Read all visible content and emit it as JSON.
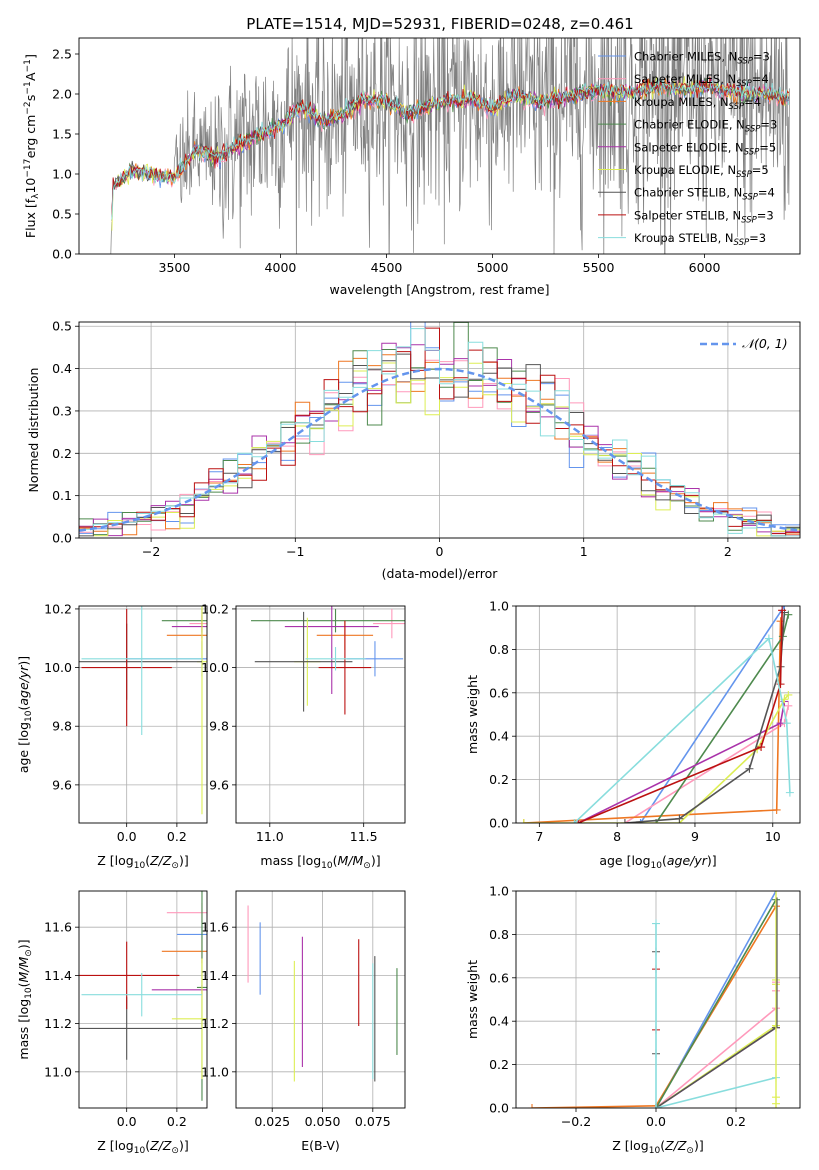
{
  "figure_title": "PLATE=1514, MJD=52931, FIBERID=0248, z=0.461",
  "palette": {
    "chabrier_miles": "#6495ed",
    "salpeter_miles": "#ff99bb",
    "kroupa_miles": "#ee7722",
    "chabrier_elodie": "#4e8a4e",
    "salpeter_elodie": "#aa33aa",
    "kroupa_elodie": "#ddee55",
    "chabrier_stelib": "#555555",
    "salpeter_stelib": "#bb1111",
    "kroupa_stelib": "#88dddd",
    "spectrum": "#808080",
    "grid": "#b0b0b0"
  },
  "chart_data": [
    {
      "id": "spectrum",
      "type": "line",
      "title": "PLATE=1514, MJD=52931, FIBERID=0248, z=0.461",
      "xlabel": "wavelength [Angstrom, rest frame]",
      "ylabel": "Flux [f",
      "ylabel_sub": "λ",
      "ylabel_rest": "10",
      "ylabel_exp": "−17",
      "ylabel_tail": " erg cm",
      "xlim": [
        3050,
        6450
      ],
      "ylim": [
        0,
        2.7
      ],
      "xticks": [
        "3500",
        "4000",
        "4500",
        "5000",
        "5500",
        "6000"
      ],
      "xtick_values": [
        3500,
        4000,
        4500,
        5000,
        5500,
        6000
      ],
      "yticks": [
        "0.0",
        "0.5",
        "1.0",
        "1.5",
        "2.0",
        "2.5"
      ],
      "ytick_values": [
        0,
        0.5,
        1.0,
        1.5,
        2.0,
        2.5
      ],
      "grid": false,
      "legend_position": "top-right",
      "legend": [
        {
          "label": "Chabrier MILES, N",
          "sub": "SSP",
          "tail": "=3",
          "color": "#6495ed"
        },
        {
          "label": "Salpeter MILES, N",
          "sub": "SSP",
          "tail": "=4",
          "color": "#ff99bb"
        },
        {
          "label": "Kroupa MILES, N",
          "sub": "SSP",
          "tail": "=4",
          "color": "#ee7722"
        },
        {
          "label": "Chabrier ELODIE, N",
          "sub": "SSP",
          "tail": "=3",
          "color": "#4e8a4e"
        },
        {
          "label": "Salpeter ELODIE, N",
          "sub": "SSP",
          "tail": "=5",
          "color": "#aa33aa"
        },
        {
          "label": "Kroupa ELODIE, N",
          "sub": "SSP",
          "tail": "=5",
          "color": "#ddee55"
        },
        {
          "label": "Chabrier STELIB, N",
          "sub": "SSP",
          "tail": "=4",
          "color": "#555555"
        },
        {
          "label": "Salpeter STELIB, N",
          "sub": "SSP",
          "tail": "=3",
          "color": "#bb1111"
        },
        {
          "label": "Kroupa STELIB, N",
          "sub": "SSP",
          "tail": "=3",
          "color": "#88dddd"
        }
      ],
      "spectrum_start": 3200,
      "spectrum_end": 6400,
      "continuum_points": [
        [
          3200,
          0.0
        ],
        [
          3210,
          0.85
        ],
        [
          3300,
          1.05
        ],
        [
          3400,
          1.0
        ],
        [
          3500,
          0.95
        ],
        [
          3600,
          1.3
        ],
        [
          3700,
          1.2
        ],
        [
          3800,
          1.35
        ],
        [
          3900,
          1.5
        ],
        [
          4000,
          1.6
        ],
        [
          4100,
          1.85
        ],
        [
          4200,
          1.65
        ],
        [
          4300,
          1.75
        ],
        [
          4400,
          1.95
        ],
        [
          4500,
          1.9
        ],
        [
          4600,
          1.75
        ],
        [
          4700,
          1.85
        ],
        [
          4800,
          1.9
        ],
        [
          4900,
          1.95
        ],
        [
          5000,
          1.8
        ],
        [
          5100,
          2.0
        ],
        [
          5200,
          1.9
        ],
        [
          5300,
          1.95
        ],
        [
          5400,
          2.0
        ],
        [
          5500,
          2.05
        ],
        [
          5600,
          2.0
        ],
        [
          5700,
          2.05
        ],
        [
          5800,
          2.1
        ],
        [
          5900,
          2.05
        ],
        [
          6000,
          2.1
        ],
        [
          6100,
          2.05
        ],
        [
          6200,
          2.0
        ],
        [
          6300,
          2.0
        ],
        [
          6400,
          1.95
        ]
      ]
    },
    {
      "id": "residuals",
      "type": "bar",
      "xlabel": "(data-model)/error",
      "ylabel": "Normed distribution",
      "xlim": [
        -2.5,
        2.5
      ],
      "ylim": [
        0,
        0.51
      ],
      "xticks": [
        "−2",
        "−1",
        "0",
        "1",
        "2"
      ],
      "xtick_values": [
        -2,
        -1,
        0,
        1,
        2
      ],
      "yticks": [
        "0.0",
        "0.1",
        "0.2",
        "0.3",
        "0.4",
        "0.5"
      ],
      "ytick_values": [
        0,
        0.1,
        0.2,
        0.3,
        0.4,
        0.5
      ],
      "grid": true,
      "legend_position": "top-right",
      "legend_label": "𝒩(0, 1)",
      "bin_width": 0.1,
      "reference": "standard normal density (dashed)"
    },
    {
      "id": "age_vs_Z",
      "type": "scatter",
      "xlabel": "Z [log",
      "xlabel_sub": "10",
      "xlabel_tail": "(Z/Z",
      "xlabel_end": ")]",
      "ylabel": "age  [log",
      "ylabel_sub": "10",
      "ylabel_tail": "(age/yr)]",
      "xlim": [
        -0.19,
        0.32
      ],
      "ylim": [
        9.47,
        10.21
      ],
      "xticks": [
        "0.0",
        "0.2"
      ],
      "xtick_values": [
        0.0,
        0.2
      ],
      "yticks": [
        "9.6",
        "9.8",
        "10.0",
        "10.2"
      ],
      "ytick_values": [
        9.6,
        9.8,
        10.0,
        10.2
      ],
      "grid": true,
      "points": [
        {
          "model": "chabrier_miles",
          "x": 0.3,
          "xerr": 0.3,
          "y": 10.03,
          "yerr": 0.06
        },
        {
          "model": "salpeter_miles",
          "x": 0.3,
          "xerr": 0.05,
          "y": 10.15,
          "yerr": 0.05
        },
        {
          "model": "kroupa_miles",
          "x": 0.3,
          "xerr": 0.14,
          "y": 10.11,
          "yerr": 0.05
        },
        {
          "model": "chabrier_elodie",
          "x": 0.3,
          "xerr": 0.16,
          "y": 10.16,
          "yerr": 0.04
        },
        {
          "model": "salpeter_elodie",
          "x": 0.3,
          "xerr": 0.12,
          "y": 10.14,
          "yerr": 0.04
        },
        {
          "model": "kroupa_elodie",
          "x": 0.3,
          "xerr": 0.02,
          "y": 10.02,
          "yerr": 0.52
        },
        {
          "model": "chabrier_stelib",
          "x": 0.0,
          "xerr": 0.3,
          "y": 10.02,
          "yerr": 0.13
        },
        {
          "model": "salpeter_stelib",
          "x": 0.0,
          "xerr": 0.18,
          "y": 10.0,
          "yerr": 0.2
        },
        {
          "model": "kroupa_stelib",
          "x": 0.06,
          "xerr": 0.24,
          "y": 10.03,
          "yerr": 0.26
        }
      ]
    },
    {
      "id": "age_vs_mass",
      "type": "scatter",
      "xlabel": "mass [log",
      "xlabel_sub": "10",
      "xlabel_tail": "(M/M",
      "xlabel_end": ")]",
      "xlim": [
        10.82,
        11.72
      ],
      "ylim": [
        9.47,
        10.21
      ],
      "xticks": [
        "11.0",
        "11.5"
      ],
      "xtick_values": [
        11.0,
        11.5
      ],
      "yticks": [
        "9.6",
        "9.8",
        "10.0",
        "10.2"
      ],
      "ytick_values": [
        9.6,
        9.8,
        10.0,
        10.2
      ],
      "grid": true,
      "points": [
        {
          "model": "chabrier_miles",
          "x": 11.56,
          "xerr": 0.15,
          "y": 10.03,
          "yerr": 0.06
        },
        {
          "model": "salpeter_miles",
          "x": 11.65,
          "xerr": 0.1,
          "y": 10.15,
          "yerr": 0.05
        },
        {
          "model": "kroupa_miles",
          "x": 11.4,
          "xerr": 0.15,
          "y": 10.11,
          "yerr": 0.05
        },
        {
          "model": "chabrier_elodie",
          "x": 11.35,
          "xerr": 0.45,
          "y": 10.16,
          "yerr": 0.04
        },
        {
          "model": "salpeter_elodie",
          "x": 11.33,
          "xerr": 0.25,
          "y": 10.14,
          "yerr": 0.23
        },
        {
          "model": "kroupa_elodie",
          "x": 11.2,
          "xerr": 0.07,
          "y": 10.02,
          "yerr": 0.15
        },
        {
          "model": "chabrier_stelib",
          "x": 11.18,
          "xerr": 0.26,
          "y": 10.02,
          "yerr": 0.17
        },
        {
          "model": "salpeter_stelib",
          "x": 11.4,
          "xerr": 0.14,
          "y": 10.0,
          "yerr": 0.16
        },
        {
          "model": "kroupa_stelib",
          "x": 11.35,
          "xerr": 0.16,
          "y": 10.03,
          "yerr": 0.04
        }
      ]
    },
    {
      "id": "mass_weight_vs_age",
      "type": "line",
      "xlabel": "age  [log",
      "xlabel_sub": "10",
      "xlabel_tail": "(age/yr)]",
      "ylabel": "mass weight",
      "xlim": [
        6.7,
        10.35
      ],
      "ylim": [
        0,
        1.0
      ],
      "xticks": [
        "7",
        "8",
        "9",
        "10"
      ],
      "xtick_values": [
        7,
        8,
        9,
        10
      ],
      "yticks": [
        "0.0",
        "0.2",
        "0.4",
        "0.6",
        "0.8",
        "1.0"
      ],
      "ytick_values": [
        0,
        0.2,
        0.4,
        0.6,
        0.8,
        1.0
      ],
      "grid": true,
      "series": [
        {
          "model": "chabrier_miles",
          "x": [
            8.3,
            10.15
          ],
          "y": [
            0.0,
            1.0
          ]
        },
        {
          "model": "salpeter_miles",
          "x": [
            8.1,
            10.15,
            10.2
          ],
          "y": [
            0.0,
            0.46,
            0.54
          ]
        },
        {
          "model": "kroupa_miles",
          "x": [
            6.8,
            10.05,
            10.1
          ],
          "y": [
            0.0,
            0.06,
            0.93
          ]
        },
        {
          "model": "chabrier_elodie",
          "x": [
            8.5,
            10.13,
            10.2
          ],
          "y": [
            0.0,
            0.86,
            0.96
          ]
        },
        {
          "model": "salpeter_elodie",
          "x": [
            7.5,
            10.1,
            10.15
          ],
          "y": [
            0.0,
            0.46,
            0.56
          ]
        },
        {
          "model": "kroupa_elodie",
          "x": [
            6.8,
            8.8,
            9.8,
            10.15,
            10.2
          ],
          "y": [
            0.0,
            0.0,
            0.34,
            0.57,
            0.59
          ]
        },
        {
          "model": "chabrier_stelib",
          "x": [
            8.1,
            8.8,
            9.7,
            10.1,
            10.15
          ],
          "y": [
            0.0,
            0.02,
            0.25,
            0.72,
            0.97
          ]
        },
        {
          "model": "salpeter_stelib",
          "x": [
            7.5,
            9.85,
            10.1,
            10.12
          ],
          "y": [
            0.0,
            0.35,
            0.64,
            0.98
          ]
        },
        {
          "model": "kroupa_stelib",
          "x": [
            7.45,
            9.95,
            10.18,
            10.22
          ],
          "y": [
            0.0,
            0.85,
            0.46,
            0.14
          ]
        }
      ]
    },
    {
      "id": "mass_vs_Z",
      "type": "scatter",
      "xlabel": "Z [log",
      "xlabel_sub": "10",
      "xlabel_tail": "(Z/Z",
      "xlabel_end": ")]",
      "ylabel": "mass [log",
      "ylabel_sub": "10",
      "ylabel_tail": "(M/M",
      "ylabel_end": ")]",
      "xlim": [
        -0.19,
        0.32
      ],
      "ylim": [
        10.85,
        11.75
      ],
      "xticks": [
        "0.0",
        "0.2"
      ],
      "xtick_values": [
        0.0,
        0.2
      ],
      "yticks": [
        "11.0",
        "11.2",
        "11.4",
        "11.6"
      ],
      "ytick_values": [
        11.0,
        11.2,
        11.4,
        11.6
      ],
      "grid": true,
      "points": [
        {
          "model": "chabrier_miles",
          "x": 0.3,
          "xerr": 0.1,
          "y": 11.57,
          "yerr": 0.02
        },
        {
          "model": "salpeter_miles",
          "x": 0.3,
          "xerr": 0.14,
          "y": 11.66,
          "yerr": 0.04
        },
        {
          "model": "kroupa_miles",
          "x": 0.3,
          "xerr": 0.16,
          "y": 11.5,
          "yerr": 0.05
        },
        {
          "model": "chabrier_elodie",
          "x": 0.3,
          "xerr": 0.02,
          "y": 11.35,
          "yerr": 0.47
        },
        {
          "model": "salpeter_elodie",
          "x": 0.3,
          "xerr": 0.2,
          "y": 11.34,
          "yerr": 0.02
        },
        {
          "model": "kroupa_elodie",
          "x": 0.3,
          "xerr": 0.12,
          "y": 11.22,
          "yerr": 0.25
        },
        {
          "model": "chabrier_stelib",
          "x": 0.0,
          "xerr": 0.3,
          "y": 11.18,
          "yerr": 0.13
        },
        {
          "model": "salpeter_stelib",
          "x": 0.0,
          "xerr": 0.21,
          "y": 11.4,
          "yerr": 0.14
        },
        {
          "model": "kroupa_stelib",
          "x": 0.06,
          "xerr": 0.24,
          "y": 11.32,
          "yerr": 0.09
        }
      ]
    },
    {
      "id": "mass_vs_ebv",
      "type": "scatter",
      "xlabel": "E(B-V)",
      "xlim": [
        0.007,
        0.091
      ],
      "ylim": [
        10.85,
        11.75
      ],
      "xticks": [
        "0.025",
        "0.050",
        "0.075"
      ],
      "xtick_values": [
        0.025,
        0.05,
        0.075
      ],
      "yticks": [
        "11.0",
        "11.2",
        "11.4",
        "11.6"
      ],
      "ytick_values": [
        11.0,
        11.2,
        11.4,
        11.6
      ],
      "grid": true,
      "points": [
        {
          "model": "salpeter_miles",
          "x": 0.013,
          "xerr": 0,
          "y": 11.53,
          "yerr": 0.16
        },
        {
          "model": "chabrier_miles",
          "x": 0.019,
          "xerr": 0,
          "y": 11.47,
          "yerr": 0.15
        },
        {
          "model": "kroupa_elodie",
          "x": 0.036,
          "xerr": 0,
          "y": 11.21,
          "yerr": 0.25
        },
        {
          "model": "salpeter_elodie",
          "x": 0.04,
          "xerr": 0,
          "y": 11.29,
          "yerr": 0.27
        },
        {
          "model": "salpeter_stelib",
          "x": 0.068,
          "xerr": 0,
          "y": 11.37,
          "yerr": 0.18
        },
        {
          "model": "kroupa_stelib",
          "x": 0.075,
          "xerr": 0,
          "y": 11.21,
          "yerr": 0.24
        },
        {
          "model": "chabrier_stelib",
          "x": 0.076,
          "xerr": 0,
          "y": 11.22,
          "yerr": 0.26
        },
        {
          "model": "chabrier_elodie",
          "x": 0.087,
          "xerr": 0,
          "y": 11.25,
          "yerr": 0.18
        }
      ]
    },
    {
      "id": "mass_weight_vs_Z",
      "type": "line",
      "xlabel": "Z [log",
      "xlabel_sub": "10",
      "xlabel_tail": "(Z/Z",
      "xlabel_end": ")]",
      "ylabel": "mass weight",
      "xlim": [
        -0.35,
        0.36
      ],
      "ylim": [
        0,
        1.0
      ],
      "xticks": [
        "−0.2",
        "0.0",
        "0.2"
      ],
      "xtick_values": [
        -0.2,
        0.0,
        0.2
      ],
      "yticks": [
        "0.0",
        "0.2",
        "0.4",
        "0.6",
        "0.8",
        "1.0"
      ],
      "ytick_values": [
        0,
        0.2,
        0.4,
        0.6,
        0.8,
        1.0
      ],
      "grid": true,
      "series": [
        {
          "model": "chabrier_miles",
          "x": [
            0.0,
            0.3
          ],
          "y": [
            0.0,
            1.0
          ]
        },
        {
          "model": "salpeter_miles",
          "x": [
            0.0,
            0.3
          ],
          "y": [
            0.0,
            0.46
          ]
        },
        {
          "model": "kroupa_miles",
          "x": [
            -0.31,
            0.0,
            0.3
          ],
          "y": [
            0.0,
            0.01,
            0.93
          ]
        },
        {
          "model": "chabrier_elodie",
          "x": [
            0.0,
            0.3
          ],
          "y": [
            0.0,
            0.96
          ]
        },
        {
          "model": "salpeter_elodie",
          "x": [
            0.0,
            0.3
          ],
          "y": [
            0.0,
            0.37
          ]
        },
        {
          "model": "kroupa_elodie",
          "x": [
            0.0,
            0.3
          ],
          "y": [
            0.0,
            0.38
          ]
        },
        {
          "model": "chabrier_stelib",
          "x": [
            0.0,
            0.3
          ],
          "y": [
            0.0,
            0.37
          ]
        },
        {
          "model": "salpeter_stelib",
          "x": [
            0.0,
            0.0
          ],
          "y": [
            0.0,
            0.0
          ]
        },
        {
          "model": "kroupa_stelib",
          "x": [
            0.0,
            0.3
          ],
          "y": [
            0.0,
            0.14
          ]
        }
      ],
      "markers_at_zero": [
        {
          "model": "chabrier_stelib",
          "y": [
            0.25,
            0.72
          ]
        },
        {
          "model": "salpeter_stelib",
          "y": [
            0.36,
            0.64
          ]
        },
        {
          "model": "kroupa_stelib",
          "y": [
            0.85
          ]
        }
      ],
      "markers_at_max": [
        {
          "model": "kroupa_elodie",
          "y": [
            0.02,
            0.05,
            0.59,
            0.57
          ]
        },
        {
          "model": "salpeter_miles",
          "y": [
            0.54,
            0.58
          ]
        }
      ]
    }
  ]
}
